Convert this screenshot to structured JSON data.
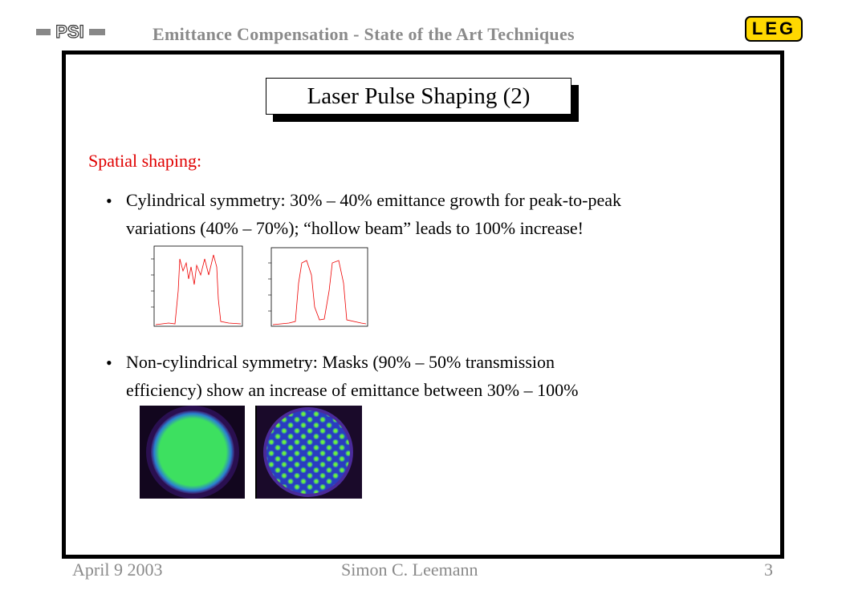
{
  "header": {
    "logo_left": "PSI",
    "title": "Emittance Compensation - State of the Art Techniques",
    "logo_right": "LEG"
  },
  "slide": {
    "title": "Laser Pulse Shaping (2)",
    "section": "Spatial shaping:",
    "bullets": [
      {
        "lines": [
          "Cylindrical symmetry: 30% – 40% emittance growth for peak-to-peak",
          "variations (40% – 70%); “hollow beam” leads to 100% increase!"
        ]
      },
      {
        "lines": [
          "Non-cylindrical symmetry: Masks (90% – 50% transmission",
          "efficiency) show an increase of emittance between 30% – 100%"
        ]
      }
    ]
  },
  "footer": {
    "date": "April 9 2003",
    "author": "Simon C. Leemann",
    "page": "3"
  }
}
